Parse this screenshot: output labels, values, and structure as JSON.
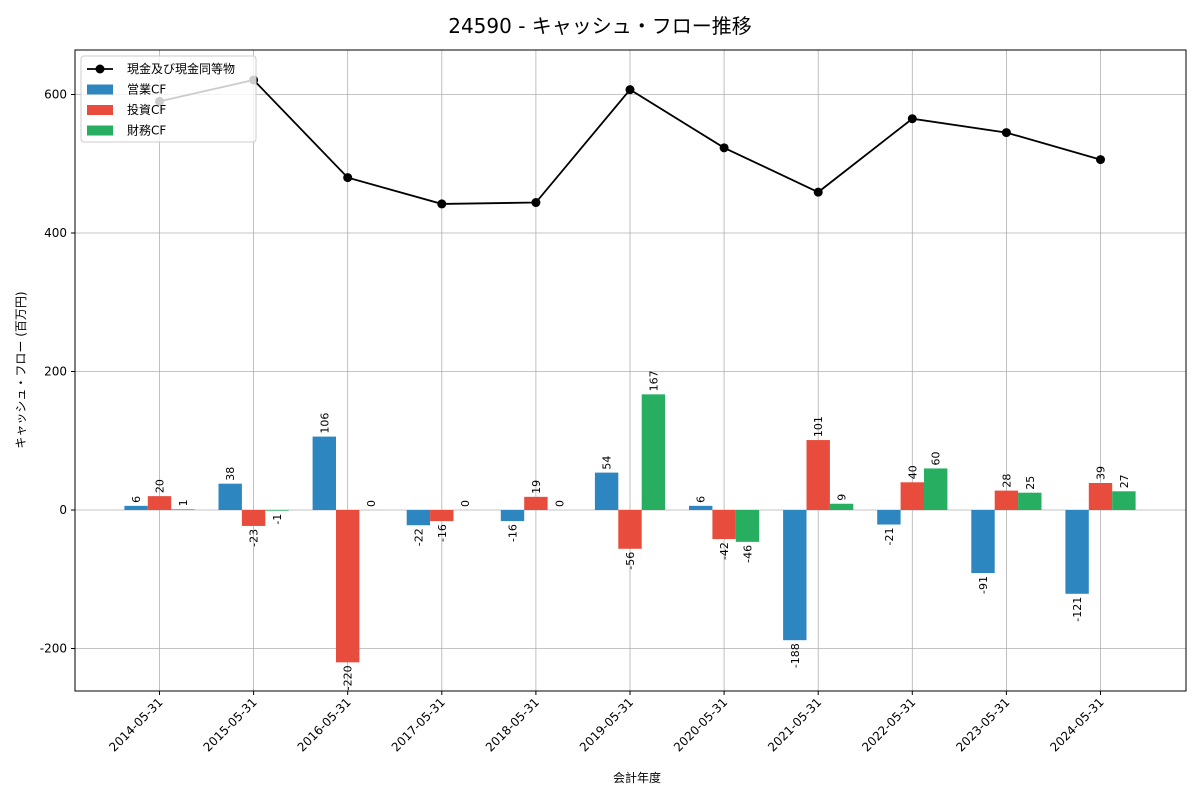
{
  "chart_data": {
    "type": "bar+line",
    "title": "24590 - キャッシュ・フロー推移",
    "xlabel": "会計年度",
    "ylabel": "キャッシュ・フロー (百万円)",
    "ylim": [
      -260,
      660
    ],
    "yticks": [
      -200,
      0,
      200,
      400,
      600
    ],
    "ytick_labels": [
      "-200",
      "0",
      "200",
      "400",
      "600"
    ],
    "grid": true,
    "legend_placement": "top-left",
    "categories": [
      "2014-05-31",
      "2015-05-31",
      "2016-05-31",
      "2017-05-31",
      "2018-05-31",
      "2019-05-31",
      "2020-05-31",
      "2021-05-31",
      "2022-05-31",
      "2023-05-31",
      "2024-05-31"
    ],
    "series": [
      {
        "name": "営業CF",
        "kind": "bar",
        "color": "#2e86c1",
        "values": [
          6,
          38,
          106,
          -22,
          -16,
          54,
          6,
          -188,
          -21,
          -91,
          -121
        ],
        "labels": [
          "6",
          "38",
          "106",
          "-22",
          "-16",
          "54",
          "6",
          "-188",
          "-21",
          "-91",
          "-121"
        ]
      },
      {
        "name": "投資CF",
        "kind": "bar",
        "color": "#e74c3c",
        "values": [
          20,
          -23,
          -220,
          -16,
          19,
          -56,
          -42,
          101,
          40,
          28,
          39
        ],
        "labels": [
          "20",
          "-23",
          "-220",
          "-16",
          "19",
          "-56",
          "-42",
          "101",
          "40",
          "28",
          "39"
        ]
      },
      {
        "name": "財務CF",
        "kind": "bar",
        "color": "#27ae60",
        "values": [
          1,
          -1,
          0,
          0,
          0,
          167,
          -46,
          9,
          60,
          25,
          27
        ],
        "labels": [
          "1",
          "-1",
          "0",
          "0",
          "0",
          "167",
          "-46",
          "9",
          "60",
          "25",
          "27"
        ]
      },
      {
        "name": "現金及び現金同等物",
        "kind": "line",
        "color": "#000000",
        "values": [
          590,
          621,
          480,
          442,
          444,
          607,
          523,
          459,
          565,
          545,
          506
        ]
      }
    ]
  }
}
